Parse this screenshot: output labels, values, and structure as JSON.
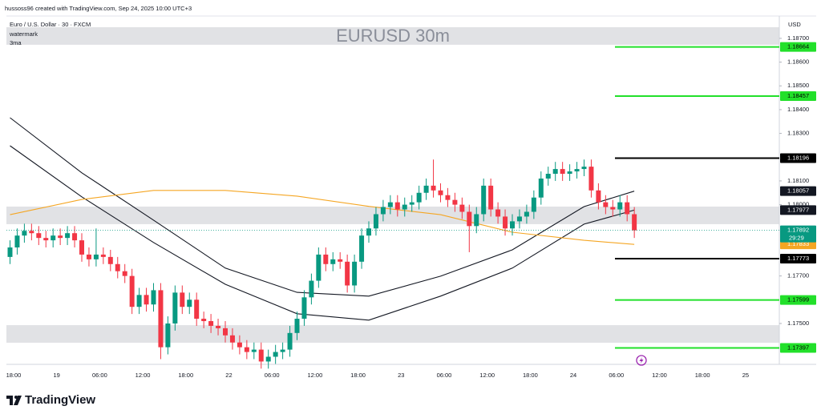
{
  "chart_data": {
    "type": "candlestick",
    "credit": "hussoss96 created with TradingView.com, Sep 24, 2025 10:00 UTC+3",
    "symbol": "Euro / U.S. Dollar · 30 · FXCM",
    "indicators": [
      "watermark",
      "3ma"
    ],
    "title": "EURUSD 30m",
    "currency": "USD",
    "brand": "TradingView",
    "time_labels": [
      "18:00",
      "19",
      "06:00",
      "12:00",
      "18:00",
      "22",
      "06:00",
      "12:00",
      "18:00",
      "23",
      "06:00",
      "12:00",
      "18:00",
      "24",
      "06:00",
      "12:00",
      "18:00",
      "25"
    ],
    "up_color": "#089981",
    "down_color": "#f23645",
    "ylim": [
      1.17328,
      1.18794
    ],
    "yticks": [
      {
        "value": 1.187,
        "label": "1.18700"
      },
      {
        "value": 1.186,
        "label": "1.18600"
      },
      {
        "value": 1.185,
        "label": "1.18500"
      },
      {
        "value": 1.184,
        "label": "1.18400"
      },
      {
        "value": 1.183,
        "label": "1.18300"
      },
      {
        "value": 1.181,
        "label": "1.18100"
      },
      {
        "value": 1.18,
        "label": "1.18000"
      },
      {
        "value": 1.177,
        "label": "1.17700"
      },
      {
        "value": 1.175,
        "label": "1.17500"
      }
    ],
    "open": [
      1.1778,
      1.1782,
      1.1787,
      1.1789,
      1.1788,
      1.1786,
      1.1785,
      1.1787,
      1.1786,
      1.1788,
      1.1785,
      1.1779,
      1.1777,
      1.1779,
      1.1778,
      1.1775,
      1.1772,
      1.177,
      1.1757,
      1.1762,
      1.1758,
      1.1764,
      1.174,
      1.175,
      1.1763,
      1.1757,
      1.176,
      1.1752,
      1.1751,
      1.1749,
      1.1748,
      1.1745,
      1.1742,
      1.174,
      1.1738,
      1.1739,
      1.1734,
      1.1736,
      1.1738,
      1.1739,
      1.1746,
      1.1752,
      1.1761,
      1.1768,
      1.1779,
      1.1775,
      1.1777,
      1.1776,
      1.1766,
      1.1776,
      1.1787,
      1.179,
      1.1796,
      1.1799,
      1.1801,
      1.1798,
      1.18,
      1.1801,
      1.1805,
      1.1808,
      1.1806,
      1.1804,
      1.1802,
      1.18,
      1.1797,
      1.1791,
      1.1796,
      1.1808,
      1.1798,
      1.1795,
      1.179,
      1.1793,
      1.1795,
      1.1797,
      1.1803,
      1.1811,
      1.1813,
      1.1815,
      1.1813,
      1.1814,
      1.1815,
      1.1816,
      1.1806,
      1.1801,
      1.1799,
      1.1798,
      1.1801,
      1.1796
    ],
    "high": [
      1.1785,
      1.179,
      1.1792,
      1.1792,
      1.1791,
      1.1789,
      1.179,
      1.179,
      1.1791,
      1.1791,
      1.1788,
      1.1782,
      1.179,
      1.1782,
      1.1781,
      1.1778,
      1.1775,
      1.1773,
      1.1765,
      1.1765,
      1.1767,
      1.1767,
      1.1753,
      1.1766,
      1.1766,
      1.1763,
      1.1763,
      1.1755,
      1.1754,
      1.1752,
      1.1751,
      1.1748,
      1.1745,
      1.1743,
      1.1742,
      1.1742,
      1.1739,
      1.1741,
      1.1742,
      1.1749,
      1.1755,
      1.1764,
      1.1771,
      1.1782,
      1.1782,
      1.178,
      1.178,
      1.1779,
      1.1779,
      1.179,
      1.1793,
      1.1799,
      1.1802,
      1.1804,
      1.1804,
      1.1803,
      1.1804,
      1.1808,
      1.1811,
      1.1819,
      1.1809,
      1.1807,
      1.1805,
      1.1803,
      1.18,
      1.1799,
      1.1811,
      1.1811,
      1.1801,
      1.1798,
      1.1796,
      1.1798,
      1.18,
      1.1806,
      1.1814,
      1.1816,
      1.1818,
      1.1818,
      1.1817,
      1.1818,
      1.1819,
      1.1819,
      1.1809,
      1.1804,
      1.1802,
      1.1804,
      1.1804,
      1.1799
    ],
    "low": [
      1.1775,
      1.1779,
      1.1784,
      1.1785,
      1.1783,
      1.1782,
      1.1782,
      1.1783,
      1.1783,
      1.1782,
      1.1776,
      1.1774,
      1.1774,
      1.1775,
      1.1772,
      1.1769,
      1.1767,
      1.1754,
      1.1754,
      1.1755,
      1.1755,
      1.1735,
      1.1737,
      1.1747,
      1.1754,
      1.1754,
      1.1749,
      1.1748,
      1.1746,
      1.1745,
      1.1742,
      1.1739,
      1.1737,
      1.1735,
      1.1735,
      1.1731,
      1.1731,
      1.1733,
      1.1735,
      1.1736,
      1.1743,
      1.1749,
      1.1758,
      1.1765,
      1.1772,
      1.1772,
      1.1773,
      1.1763,
      1.1763,
      1.1773,
      1.1784,
      1.1787,
      1.1793,
      1.1796,
      1.1795,
      1.1795,
      1.1797,
      1.1798,
      1.1802,
      1.1803,
      1.1801,
      1.1799,
      1.1797,
      1.1794,
      1.178,
      1.1788,
      1.1793,
      1.1795,
      1.1792,
      1.1787,
      1.1787,
      1.179,
      1.1792,
      1.1794,
      1.18,
      1.1808,
      1.181,
      1.181,
      1.181,
      1.1811,
      1.1812,
      1.1803,
      1.1798,
      1.1796,
      1.1795,
      1.1795,
      1.1793,
      1.1786
    ],
    "close": [
      1.1782,
      1.1787,
      1.1789,
      1.1788,
      1.1786,
      1.1785,
      1.1787,
      1.1786,
      1.1788,
      1.1785,
      1.1779,
      1.1777,
      1.1779,
      1.1778,
      1.1775,
      1.1772,
      1.177,
      1.1757,
      1.1762,
      1.1758,
      1.1764,
      1.174,
      1.175,
      1.1763,
      1.1757,
      1.176,
      1.1752,
      1.1751,
      1.1749,
      1.1748,
      1.1745,
      1.1742,
      1.174,
      1.1738,
      1.1739,
      1.1734,
      1.1736,
      1.1738,
      1.1739,
      1.1746,
      1.1752,
      1.1761,
      1.1768,
      1.1779,
      1.1775,
      1.1777,
      1.1776,
      1.1766,
      1.1776,
      1.1787,
      1.179,
      1.1796,
      1.1799,
      1.1801,
      1.1798,
      1.18,
      1.1801,
      1.1805,
      1.1808,
      1.1806,
      1.1804,
      1.1802,
      1.18,
      1.1797,
      1.1791,
      1.1796,
      1.1808,
      1.1798,
      1.1795,
      1.179,
      1.1793,
      1.1795,
      1.1797,
      1.1803,
      1.1811,
      1.1813,
      1.1815,
      1.1813,
      1.1814,
      1.1815,
      1.1816,
      1.1806,
      1.1801,
      1.1799,
      1.1798,
      1.1801,
      1.1796,
      1.17892
    ],
    "countdown": "29:29",
    "moving_averages": [
      {
        "color": "#131722",
        "x": [
          0,
          10,
          20,
          30,
          40,
          50,
          60,
          70,
          80,
          87
        ],
        "values": [
          1.18366,
          1.18134,
          1.17935,
          1.17733,
          1.17631,
          1.17615,
          1.17699,
          1.1781,
          1.17992,
          1.18057
        ]
      },
      {
        "color": "#131722",
        "x": [
          0,
          10,
          20,
          30,
          40,
          50,
          60,
          70,
          80,
          87
        ],
        "values": [
          1.18248,
          1.18033,
          1.17841,
          1.17665,
          1.17541,
          1.17514,
          1.17615,
          1.17733,
          1.17918,
          1.17977
        ]
      },
      {
        "color": "#f5a623",
        "x": [
          0,
          10,
          20,
          30,
          40,
          50,
          60,
          70,
          80,
          87
        ],
        "values": [
          1.17958,
          1.18022,
          1.1806,
          1.1806,
          1.18036,
          1.17993,
          1.17958,
          1.17884,
          1.1785,
          1.17833
        ]
      }
    ],
    "levels": [
      {
        "value": 1.18664,
        "color": "#22e02a"
      },
      {
        "value": 1.18457,
        "color": "#22e02a"
      },
      {
        "value": 1.18196,
        "color": "#000000"
      },
      {
        "value": 1.17773,
        "color": "#000000"
      },
      {
        "value": 1.17599,
        "color": "#22e02a"
      },
      {
        "value": 1.17397,
        "color": "#22e02a"
      }
    ],
    "zones": [
      {
        "top": 1.18747,
        "bottom": 1.18673,
        "color": "#dcdde0"
      },
      {
        "top": 1.17992,
        "bottom": 1.17918,
        "color": "#dcdde0"
      },
      {
        "top": 1.17493,
        "bottom": 1.17419,
        "color": "#dcdde0"
      }
    ]
  }
}
